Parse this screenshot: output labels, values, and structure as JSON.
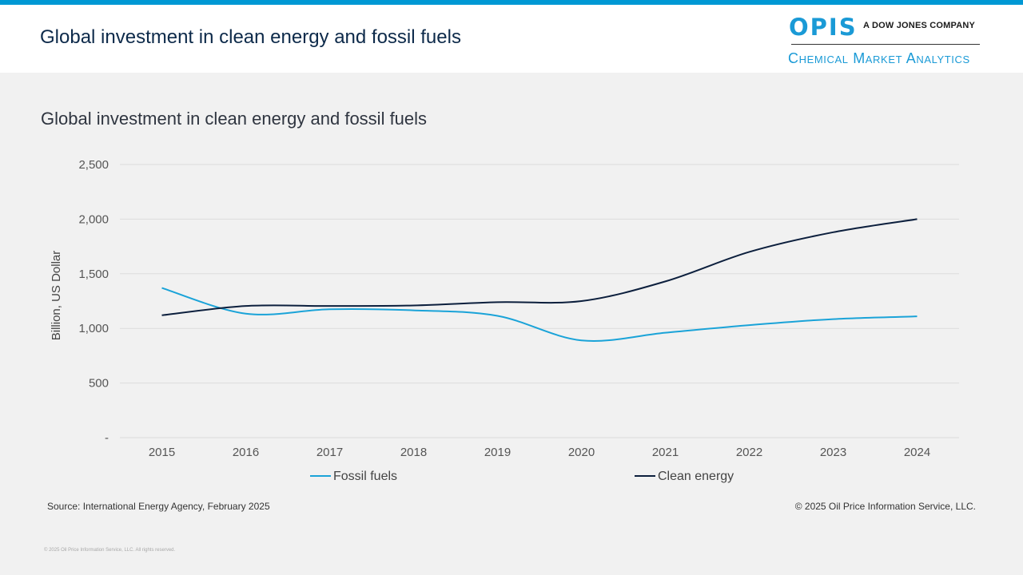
{
  "header": {
    "title": "Global investment in clean energy and fossil fuels",
    "logo": {
      "brand": "OPIS",
      "tagline": "A DOW JONES COMPANY",
      "division": "Chemical Market Analytics"
    }
  },
  "colors": {
    "top_bar": "#0098d4",
    "brand_blue": "#1a9ad6",
    "fossil_fuels": "#1aa3d8",
    "clean_energy": "#0c1f3d",
    "gridline": "#dcdcdc"
  },
  "chart_data": {
    "type": "line",
    "title": "Global investment in clean energy and fossil fuels",
    "xlabel": "",
    "ylabel": "Billion, US Dollar",
    "categories": [
      "2015",
      "2016",
      "2017",
      "2018",
      "2019",
      "2020",
      "2021",
      "2022",
      "2023",
      "2024"
    ],
    "ylim": [
      0,
      2500
    ],
    "yticks": [
      0,
      500,
      1000,
      1500,
      2000,
      2500
    ],
    "ytick_labels": [
      "-",
      "500",
      "1,000",
      "1,500",
      "2,000",
      "2,500"
    ],
    "grid": true,
    "legend_position": "bottom",
    "series": [
      {
        "name": "Fossil fuels",
        "values": [
          1370,
          1135,
          1175,
          1165,
          1115,
          890,
          960,
          1030,
          1085,
          1110
        ]
      },
      {
        "name": "Clean energy",
        "values": [
          1120,
          1205,
          1205,
          1210,
          1240,
          1250,
          1430,
          1700,
          1880,
          2000
        ]
      }
    ]
  },
  "footer": {
    "source": "Source: International Energy Agency, February 2025",
    "copyright": "© 2025 Oil Price Information Service, LLC.",
    "fine_print": "© 2025 Oil Price Information Service, LLC. All rights reserved."
  }
}
